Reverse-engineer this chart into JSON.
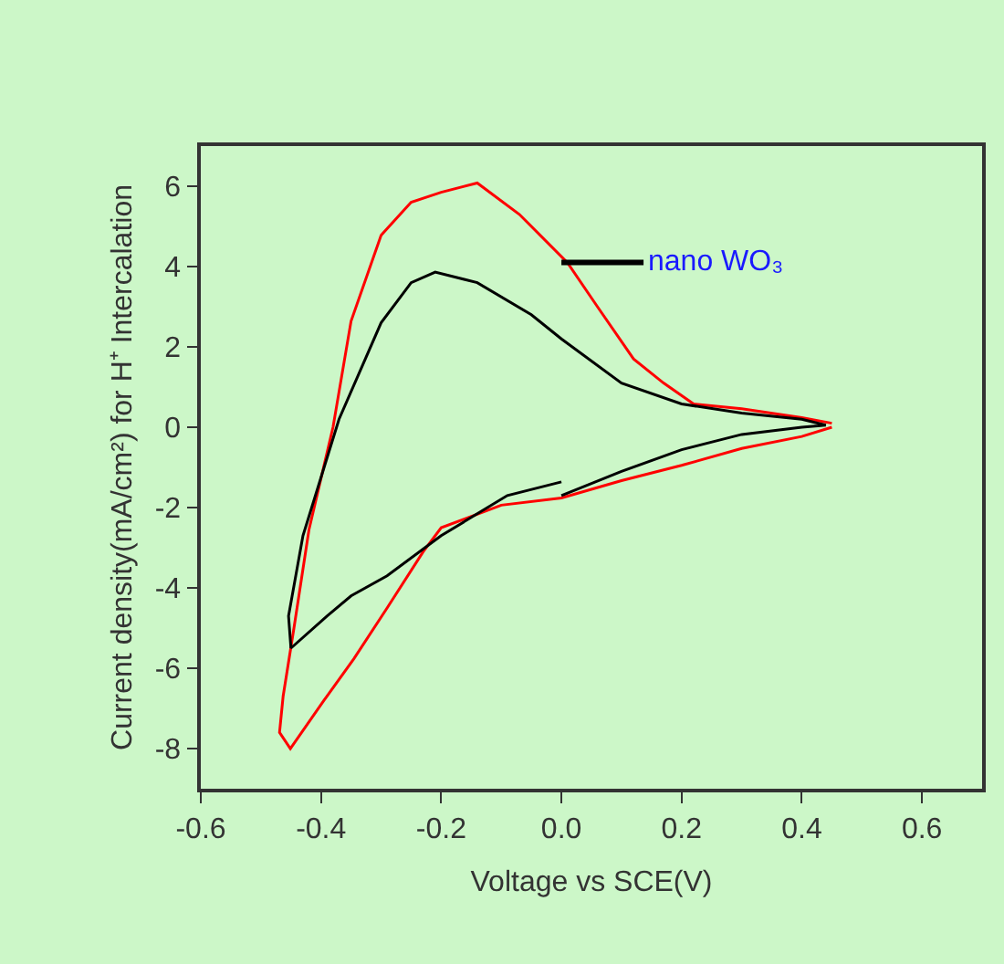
{
  "chart_data": {
    "type": "line",
    "xlabel": "Voltage vs SCE(V)",
    "ylabel": "Current density(mA/cm²) for H⁺ Intercalation",
    "xlim": [
      -0.6,
      0.7
    ],
    "xticks": [
      {
        "value": -0.6,
        "label": "-0.6"
      },
      {
        "value": -0.4,
        "label": "-0.4"
      },
      {
        "value": -0.2,
        "label": "-0.2"
      },
      {
        "value": 0,
        "label": "0.0"
      },
      {
        "value": 0.2,
        "label": "0.2"
      },
      {
        "value": 0.4,
        "label": "0.4"
      },
      {
        "value": 0.6,
        "label": "0.6"
      }
    ],
    "ylim": [
      -9,
      7
    ],
    "yticks": [
      -8,
      -6,
      -4,
      -2,
      0,
      2,
      4,
      6
    ],
    "grid": false,
    "marker": "none",
    "line_style": "solid",
    "annotations": [
      {
        "text": "nano WO₃",
        "x": 0.0,
        "y": 4.1
      }
    ],
    "series": [
      {
        "color": "#ff0000",
        "x": [
          0.45,
          0.4,
          0.3,
          0.22,
          0.17,
          0.12,
          0.06,
          0.01,
          -0.07,
          -0.14,
          -0.2,
          -0.25,
          -0.3,
          -0.35,
          -0.38,
          -0.42,
          -0.445,
          -0.463,
          -0.469,
          -0.451,
          -0.395,
          -0.345,
          -0.29,
          -0.23,
          -0.2,
          -0.1,
          0.0,
          0.1,
          0.2,
          0.3,
          0.4,
          0.45
        ],
        "values": [
          0.1,
          0.24,
          0.46,
          0.58,
          1.1,
          1.7,
          3.0,
          4.1,
          5.3,
          6.08,
          5.85,
          5.6,
          4.78,
          2.64,
          0.0,
          -2.55,
          -5.0,
          -6.7,
          -7.6,
          -8.0,
          -6.8,
          -5.76,
          -4.5,
          -3.1,
          -2.5,
          -1.94,
          -1.76,
          -1.33,
          -0.95,
          -0.53,
          -0.23,
          0.0
        ]
      },
      {
        "color": "#000000",
        "x": [
          0.0,
          -0.09,
          -0.2,
          -0.29,
          -0.35,
          -0.39,
          -0.45,
          -0.454,
          -0.43,
          -0.37,
          -0.3,
          -0.25,
          -0.21,
          -0.14,
          -0.05,
          0.0,
          0.1,
          0.2,
          0.3,
          0.4,
          0.44,
          0.4,
          0.3,
          0.2,
          0.1,
          0.0
        ],
        "values": [
          -1.36,
          -1.7,
          -2.7,
          -3.7,
          -4.2,
          -4.7,
          -5.5,
          -4.7,
          -2.7,
          0.2,
          2.6,
          3.6,
          3.86,
          3.6,
          2.8,
          2.2,
          1.1,
          0.58,
          0.35,
          0.2,
          0.05,
          0.0,
          -0.18,
          -0.56,
          -1.1,
          -1.7
        ]
      }
    ]
  }
}
